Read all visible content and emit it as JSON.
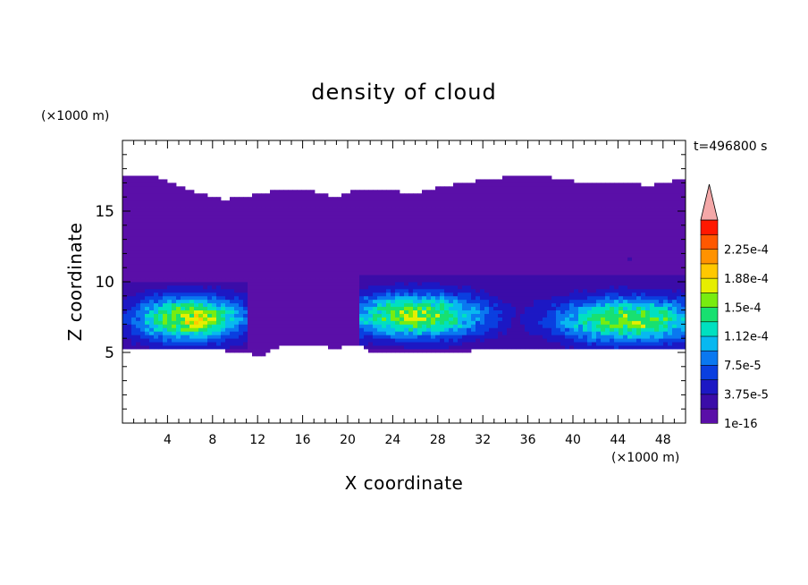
{
  "chart_data": {
    "type": "heatmap",
    "title": "density of cloud",
    "xlabel": "X coordinate",
    "ylabel": "Z coordinate",
    "x_unit": "(×1000 m)",
    "y_unit": "(×1000 m)",
    "time_label": "t=496800 s",
    "xlim": [
      0,
      50
    ],
    "ylim": [
      0,
      20
    ],
    "x_ticks": [
      "4",
      "8",
      "12",
      "16",
      "20",
      "24",
      "28",
      "32",
      "36",
      "40",
      "44",
      "48"
    ],
    "y_ticks": [
      "5",
      "10",
      "15"
    ],
    "colorbar": {
      "levels": [
        1e-16,
        1.875e-05,
        3.75e-05,
        5.625e-05,
        7.5e-05,
        9.375e-05,
        0.0001125,
        0.00013125,
        0.00015,
        0.00016875,
        0.0001875,
        0.00020625,
        0.000225,
        0.00024375
      ],
      "tick_labels": [
        "1e-16",
        "3.75e-5",
        "7.5e-5",
        "1.12e-4",
        "1.5e-4",
        "1.88e-4",
        "2.25e-4"
      ],
      "colors": [
        "#5a0fa8",
        "#3b0ca8",
        "#1c18c4",
        "#0a3fe0",
        "#0a78f0",
        "#08b8f0",
        "#00e0c0",
        "#18e070",
        "#78ec10",
        "#e6ee00",
        "#ffc800",
        "#ff9200",
        "#ff5800",
        "#ff1800"
      ],
      "overflow_color": "#f4a8a8"
    },
    "cloud_layer": {
      "top_z_by_x": [
        [
          0,
          17.4
        ],
        [
          3,
          17.5
        ],
        [
          5,
          16.8
        ],
        [
          7,
          16.2
        ],
        [
          9,
          15.8
        ],
        [
          12,
          16.2
        ],
        [
          14,
          16.5
        ],
        [
          17,
          16.4
        ],
        [
          19,
          16.0
        ],
        [
          21,
          16.6
        ],
        [
          26,
          16.3
        ],
        [
          30,
          17.0
        ],
        [
          34,
          17.4
        ],
        [
          38,
          17.4
        ],
        [
          41,
          17.0
        ],
        [
          44,
          17.0
        ],
        [
          47,
          16.8
        ],
        [
          50,
          17.4
        ]
      ],
      "bottom_z_by_x": [
        [
          0,
          5.3
        ],
        [
          4,
          5.2
        ],
        [
          8,
          5.2
        ],
        [
          11,
          5.0
        ],
        [
          12,
          4.6
        ],
        [
          14,
          5.5
        ],
        [
          17,
          5.6
        ],
        [
          19,
          5.2
        ],
        [
          20,
          5.6
        ],
        [
          21,
          5.5
        ],
        [
          22,
          5.1
        ],
        [
          26,
          5.0
        ],
        [
          30,
          5.1
        ],
        [
          34,
          5.2
        ],
        [
          38,
          5.3
        ],
        [
          42,
          5.3
        ],
        [
          46,
          5.3
        ],
        [
          50,
          5.3
        ]
      ],
      "dense_cores": [
        {
          "x_range": [
            0,
            11
          ],
          "z_range": [
            5.3,
            10
          ],
          "peak_x": 6,
          "peak_z": 7.4,
          "peak_value": 0.00016
        },
        {
          "x_range": [
            21,
            35
          ],
          "z_range": [
            5.2,
            10.5
          ],
          "peak_x": 26,
          "peak_z": 7.6,
          "peak_value": 0.00015
        },
        {
          "x_range": [
            35,
            50
          ],
          "z_range": [
            5.3,
            10.5
          ],
          "peak_x": 45,
          "peak_z": 7.3,
          "peak_value": 0.000145
        }
      ]
    }
  }
}
